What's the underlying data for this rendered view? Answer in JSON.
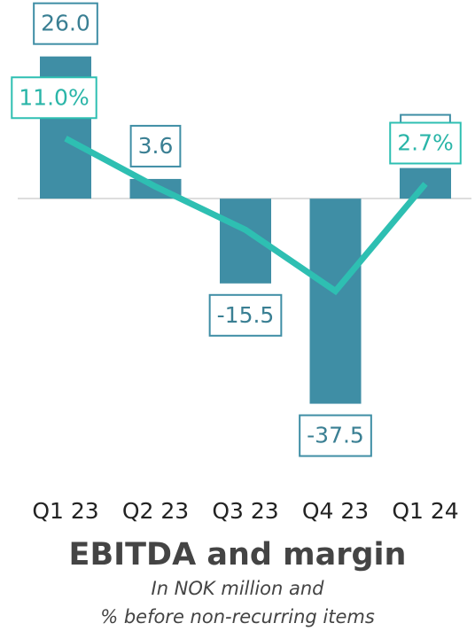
{
  "chart_data": {
    "type": "bar",
    "title": "EBITDA and margin",
    "subtitle": [
      "In NOK million and",
      "% before non-recurring items"
    ],
    "categories": [
      "Q1 23",
      "Q2 23",
      "Q3 23",
      "Q4 23",
      "Q1 24"
    ],
    "ylim": [
      -40,
      30
    ],
    "y2lim": [
      -40,
      30
    ],
    "series": [
      {
        "name": "EBITDA",
        "type": "bar",
        "color": "#3f8ea5",
        "values": [
          26.0,
          3.6,
          -15.5,
          -37.5,
          5.6
        ],
        "value_labels": [
          "26.0",
          "3.6",
          "-15.5",
          "-37.5",
          "5.6"
        ]
      },
      {
        "name": "Margin",
        "type": "line",
        "axis": "y2",
        "color": "#2ebfb2",
        "values": [
          11.0,
          2.2,
          -5.7,
          -16.9,
          2.7
        ],
        "value_labels": [
          "11.0%",
          null,
          null,
          null,
          "2.7%"
        ]
      }
    ]
  }
}
